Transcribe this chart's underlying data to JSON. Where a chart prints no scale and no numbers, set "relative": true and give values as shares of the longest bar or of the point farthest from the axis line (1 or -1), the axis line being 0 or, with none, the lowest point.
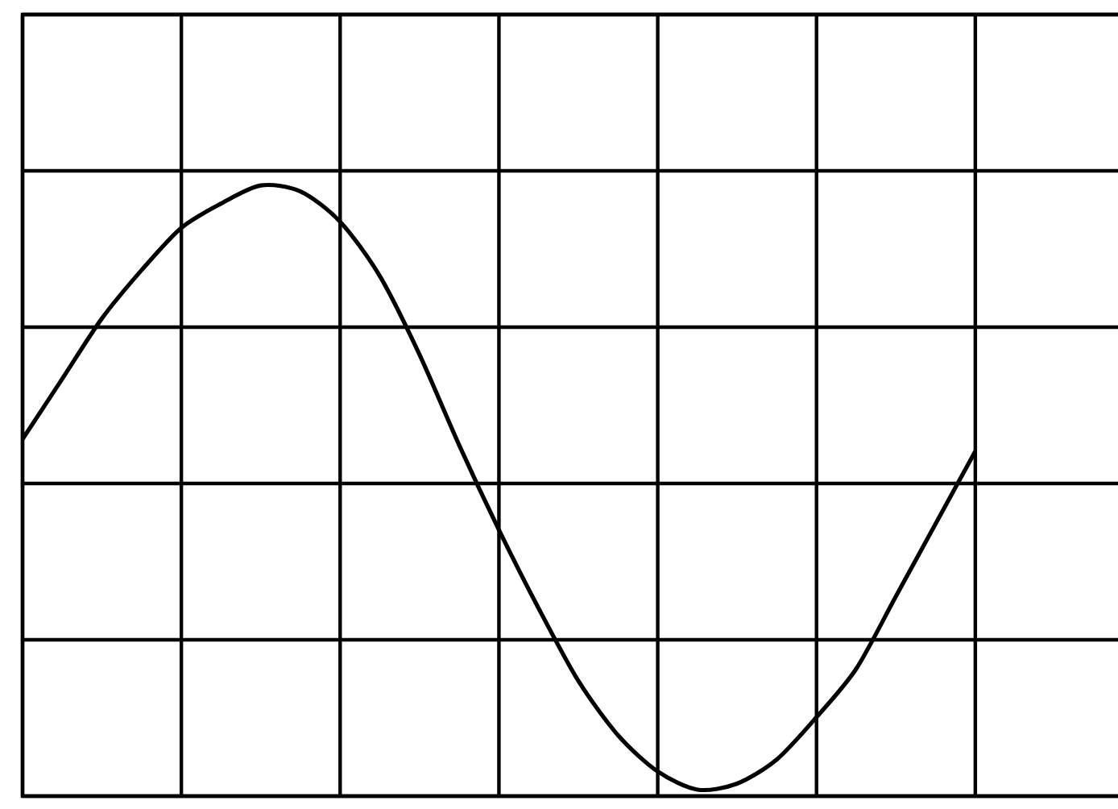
{
  "chart_data": {
    "type": "line",
    "relative": true,
    "grid": true,
    "categories": [
      null,
      null,
      null,
      null,
      null,
      null,
      null,
      null,
      null,
      null,
      null,
      null,
      null,
      null,
      null,
      null,
      null,
      null,
      null,
      null,
      null,
      null,
      null,
      null,
      null,
      null,
      null,
      null,
      null
    ],
    "series": [
      {
        "color": "#000000",
        "values": [
          0.58,
          0.68,
          0.78,
          0.86,
          0.93,
          0.97,
          1.0,
          0.99,
          0.94,
          0.85,
          0.72,
          0.57,
          0.43,
          0.3,
          0.18,
          0.09,
          0.03,
          0.0,
          0.01,
          0.05,
          0.12,
          0.2,
          0.32,
          0.44,
          0.56,
          null,
          null,
          null,
          null
        ]
      }
    ]
  }
}
